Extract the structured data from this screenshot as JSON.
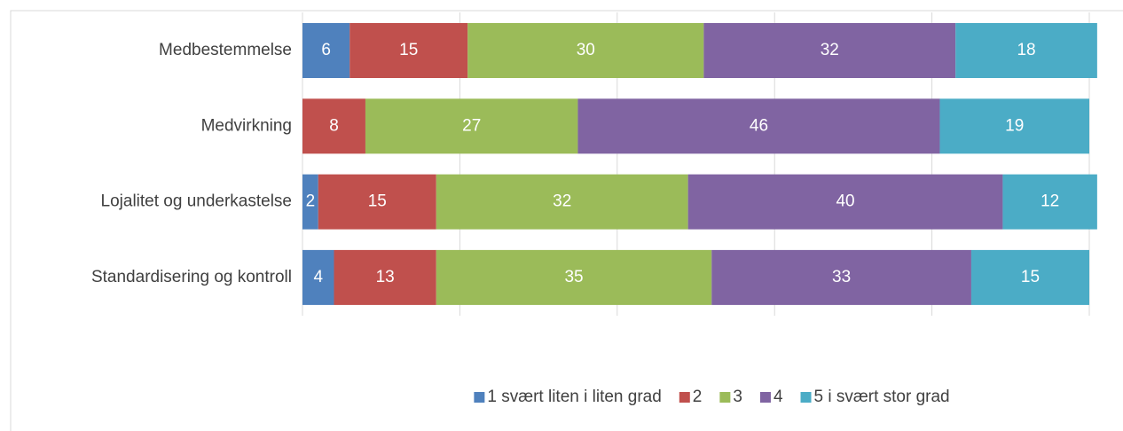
{
  "chart_data": {
    "type": "stacked_bar_horizontal",
    "categories": [
      "Medbestemmelse",
      "Medvirkning",
      "Lojalitet og underkastelse",
      "Standardisering og kontroll"
    ],
    "series": [
      {
        "name": "1 svært liten i liten grad",
        "color": "#4f81bd",
        "values": [
          6,
          null,
          2,
          4
        ]
      },
      {
        "name": "2",
        "color": "#c0504d",
        "values": [
          15,
          8,
          15,
          13
        ]
      },
      {
        "name": "3",
        "color": "#9bbb59",
        "values": [
          30,
          27,
          32,
          35
        ]
      },
      {
        "name": "4",
        "color": "#8064a2",
        "values": [
          32,
          46,
          40,
          33
        ]
      },
      {
        "name": "5 i svært stor grad",
        "color": "#4bacc6",
        "values": [
          18,
          19,
          12,
          15
        ]
      }
    ],
    "xlim": [
      0,
      100
    ],
    "xticks": [
      0,
      20,
      40,
      60,
      80,
      100
    ],
    "grid": true,
    "legend": "bottom"
  }
}
